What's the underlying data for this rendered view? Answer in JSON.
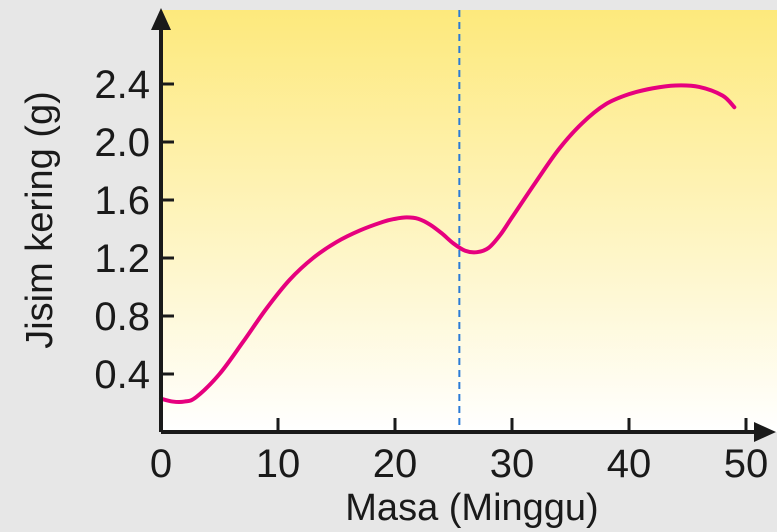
{
  "chart_data": {
    "type": "line",
    "xlabel": "Masa (Minggu)",
    "ylabel": "Jisim kering (g)",
    "xlim": [
      0,
      50
    ],
    "ylim": [
      0,
      2.8
    ],
    "xticks": [
      "0",
      "10",
      "20",
      "30",
      "40",
      "50"
    ],
    "yticks": [
      "0.4",
      "0.8",
      "1.2",
      "1.6",
      "2.0",
      "2.4"
    ],
    "grid": false,
    "marker_line": {
      "x": 25.5,
      "style": "dashed",
      "color": "#2b7bd6"
    },
    "series": [
      {
        "color": "#e6007e",
        "x": [
          0,
          1,
          2,
          3,
          5,
          7,
          9,
          11,
          13,
          15,
          17,
          19,
          20,
          21,
          22,
          23,
          24,
          25,
          26,
          27,
          28,
          29,
          30,
          32,
          34,
          36,
          38,
          40,
          42,
          44,
          46,
          48,
          49
        ],
        "y": [
          0.23,
          0.21,
          0.21,
          0.24,
          0.4,
          0.62,
          0.85,
          1.05,
          1.2,
          1.31,
          1.39,
          1.45,
          1.47,
          1.48,
          1.47,
          1.43,
          1.37,
          1.3,
          1.25,
          1.24,
          1.27,
          1.36,
          1.48,
          1.72,
          1.95,
          2.13,
          2.26,
          2.33,
          2.37,
          2.39,
          2.38,
          2.32,
          2.24
        ]
      }
    ],
    "colors": {
      "background_top": "#fde97c",
      "background_bottom": "#ffffff",
      "axis": "#1a1a1a",
      "frame": "#e7e7e7"
    }
  }
}
